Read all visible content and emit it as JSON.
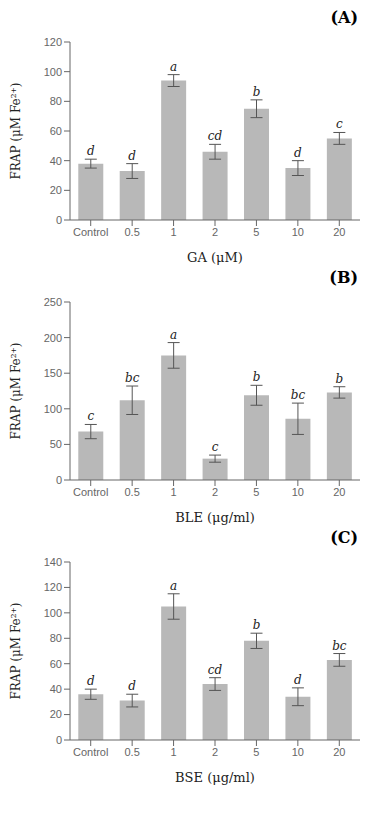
{
  "chart_data": [
    {
      "type": "bar",
      "title": "(A)",
      "categories": [
        "Control",
        "0.5",
        "1",
        "2",
        "5",
        "10",
        "20"
      ],
      "values": [
        38,
        33,
        94,
        46,
        75,
        35,
        55
      ],
      "errors": [
        3,
        5,
        4,
        5,
        6,
        5,
        4
      ],
      "annotations": [
        "d",
        "d",
        "a",
        "cd",
        "b",
        "d",
        "c"
      ],
      "xlabel": "GA (μM)",
      "ylabel": "FRAP (μM Fe²⁺)",
      "ylim": [
        0,
        120
      ],
      "yticks": [
        0,
        20,
        40,
        60,
        80,
        100,
        120
      ],
      "color": "#b8b8b8",
      "grid": false
    },
    {
      "type": "bar",
      "title": "(B)",
      "categories": [
        "Control",
        "0.5",
        "1",
        "2",
        "5",
        "10",
        "20"
      ],
      "values": [
        68,
        112,
        175,
        30,
        119,
        86,
        123
      ],
      "errors": [
        10,
        20,
        18,
        5,
        14,
        22,
        8
      ],
      "annotations": [
        "c",
        "bc",
        "a",
        "c",
        "b",
        "bc",
        "b"
      ],
      "xlabel": "BLE (μg/ml)",
      "ylabel": "FRAP (μM Fe²⁺)",
      "ylim": [
        0,
        250
      ],
      "yticks": [
        0,
        50,
        100,
        150,
        200,
        250
      ],
      "color": "#b8b8b8",
      "grid": false
    },
    {
      "type": "bar",
      "title": "(C)",
      "categories": [
        "Control",
        "0.5",
        "1",
        "2",
        "5",
        "10",
        "20"
      ],
      "values": [
        36,
        31,
        105,
        44,
        78,
        34,
        63
      ],
      "errors": [
        4,
        5,
        10,
        5,
        6,
        7,
        5
      ],
      "annotations": [
        "d",
        "d",
        "a",
        "cd",
        "b",
        "d",
        "bc"
      ],
      "xlabel": "BSE (μg/ml)",
      "ylabel": "FRAP (μM Fe²⁺)",
      "ylim": [
        0,
        140
      ],
      "yticks": [
        0,
        20,
        40,
        60,
        80,
        100,
        120,
        140
      ],
      "color": "#b8b8b8",
      "grid": false
    }
  ]
}
